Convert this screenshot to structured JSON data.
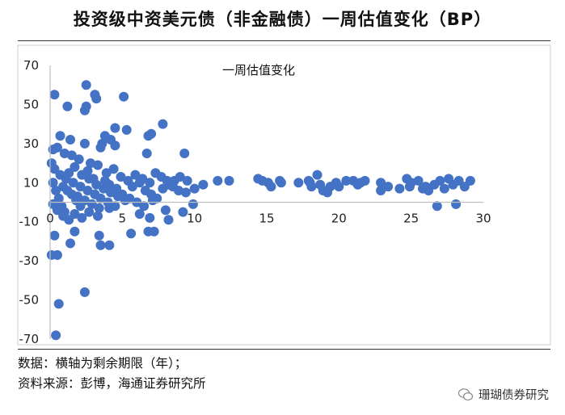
{
  "header": {
    "title": "投资级中资美元债（非金融债）一周估值变化（BP）"
  },
  "footer": {
    "data_note": "数据：横轴为剩余期限（年）；",
    "source_note": "资料来源：彭博，海通证券研究所",
    "brand": "珊瑚债券研究"
  },
  "chart_data": {
    "type": "scatter",
    "title": "一周估值变化",
    "xlabel": "",
    "ylabel": "",
    "xlim": [
      0,
      30
    ],
    "ylim": [
      -70,
      70
    ],
    "xticks": [
      "0",
      "5",
      "10",
      "15",
      "20",
      "25",
      "30"
    ],
    "yticks": [
      "70",
      "50",
      "30",
      "10",
      "-10",
      "-30",
      "-50",
      "-70"
    ],
    "grid": false,
    "legend": "none",
    "color": "#4472C4",
    "series": [
      {
        "points": [
          [
            0.3,
            55
          ],
          [
            2.5,
            60
          ],
          [
            3.1,
            55
          ],
          [
            3.2,
            53
          ],
          [
            5.1,
            54
          ],
          [
            2.5,
            49
          ],
          [
            1.2,
            49
          ],
          [
            2.4,
            47
          ],
          [
            0.7,
            34
          ],
          [
            1.4,
            32
          ],
          [
            2.4,
            30
          ],
          [
            3.6,
            30
          ],
          [
            4.5,
            38
          ],
          [
            5.3,
            37
          ],
          [
            7.8,
            40
          ],
          [
            7.0,
            35
          ],
          [
            6.8,
            34
          ],
          [
            3.8,
            34
          ],
          [
            4.2,
            32
          ],
          [
            3.5,
            28
          ],
          [
            4.5,
            29
          ],
          [
            6.7,
            25
          ],
          [
            9.3,
            25
          ],
          [
            0.2,
            27
          ],
          [
            0.5,
            28
          ],
          [
            1.0,
            25
          ],
          [
            1.5,
            24
          ],
          [
            2.0,
            22
          ],
          [
            2.8,
            20
          ],
          [
            0.1,
            20
          ],
          [
            0.3,
            17
          ],
          [
            0.7,
            14
          ],
          [
            1.1,
            12
          ],
          [
            1.6,
            10
          ],
          [
            2.1,
            8
          ],
          [
            2.6,
            6
          ],
          [
            3.1,
            4
          ],
          [
            3.5,
            2
          ],
          [
            4.0,
            0
          ],
          [
            4.5,
            -2
          ],
          [
            0.2,
            10
          ],
          [
            0.4,
            6
          ],
          [
            0.6,
            2
          ],
          [
            0.8,
            -2
          ],
          [
            1.0,
            -5
          ],
          [
            1.3,
            15
          ],
          [
            1.7,
            18
          ],
          [
            2.2,
            14
          ],
          [
            2.7,
            12
          ],
          [
            3.2,
            9
          ],
          [
            3.7,
            7
          ],
          [
            4.2,
            5
          ],
          [
            4.7,
            3
          ],
          [
            5.2,
            1
          ],
          [
            5.7,
            8
          ],
          [
            6.2,
            10
          ],
          [
            6.6,
            6
          ],
          [
            7.0,
            4
          ],
          [
            7.4,
            2
          ],
          [
            7.8,
            7
          ],
          [
            8.2,
            9
          ],
          [
            8.6,
            11
          ],
          [
            9.0,
            13
          ],
          [
            9.4,
            5
          ],
          [
            1.9,
            3
          ],
          [
            2.4,
            1
          ],
          [
            2.9,
            -1
          ],
          [
            3.4,
            -3
          ],
          [
            3.9,
            15
          ],
          [
            4.4,
            17
          ],
          [
            4.9,
            13
          ],
          [
            5.4,
            11
          ],
          [
            5.9,
            14
          ],
          [
            6.4,
            12
          ],
          [
            6.9,
            10
          ],
          [
            7.3,
            15
          ],
          [
            7.7,
            13
          ],
          [
            8.1,
            11
          ],
          [
            8.5,
            8
          ],
          [
            8.9,
            6
          ],
          [
            0.9,
            8
          ],
          [
            1.2,
            6
          ],
          [
            1.5,
            4
          ],
          [
            1.8,
            1
          ],
          [
            2.1,
            -2
          ],
          [
            2.6,
            16
          ],
          [
            3.0,
            12
          ],
          [
            3.3,
            19
          ],
          [
            3.8,
            11
          ],
          [
            4.1,
            9
          ],
          [
            4.6,
            7
          ],
          [
            5.0,
            4
          ],
          [
            5.5,
            2
          ],
          [
            6.0,
            0
          ],
          [
            6.5,
            -2
          ],
          [
            7.1,
            1
          ],
          [
            0.2,
            -1
          ],
          [
            0.5,
            -4
          ],
          [
            0.9,
            -7
          ],
          [
            1.3,
            -9
          ],
          [
            1.7,
            -6
          ],
          [
            2.2,
            -8
          ],
          [
            2.7,
            -5
          ],
          [
            3.3,
            -7
          ],
          [
            4.1,
            -3
          ],
          [
            6.2,
            -6
          ],
          [
            6.9,
            -8
          ],
          [
            8.0,
            -4
          ],
          [
            9.9,
            -1
          ],
          [
            0.3,
            -17
          ],
          [
            1.7,
            -15
          ],
          [
            1.4,
            -21
          ],
          [
            3.4,
            -17
          ],
          [
            3.5,
            -22
          ],
          [
            4.1,
            -22
          ],
          [
            5.6,
            -16
          ],
          [
            6.8,
            -15
          ],
          [
            7.2,
            -15
          ],
          [
            8.2,
            -9
          ],
          [
            9.2,
            -5
          ],
          [
            0.1,
            -27
          ],
          [
            0.5,
            -27
          ],
          [
            0.6,
            -52
          ],
          [
            2.4,
            -46
          ],
          [
            0.4,
            -68
          ],
          [
            9.5,
            11
          ],
          [
            10.0,
            7
          ],
          [
            10.6,
            9
          ],
          [
            11.6,
            11
          ],
          [
            12.4,
            11
          ],
          [
            14.4,
            12
          ],
          [
            14.7,
            11
          ],
          [
            15.1,
            10
          ],
          [
            15.3,
            8
          ],
          [
            16.0,
            10
          ],
          [
            17.2,
            10
          ],
          [
            17.9,
            11
          ],
          [
            18.1,
            8
          ],
          [
            18.5,
            14
          ],
          [
            18.7,
            9
          ],
          [
            18.9,
            6
          ],
          [
            19.4,
            8
          ],
          [
            19.8,
            10
          ],
          [
            20.5,
            11
          ],
          [
            21.0,
            11
          ],
          [
            21.5,
            10
          ],
          [
            21.8,
            11
          ],
          [
            22.9,
            10
          ],
          [
            23.4,
            8
          ],
          [
            24.7,
            12
          ],
          [
            25.0,
            10
          ],
          [
            25.5,
            11
          ],
          [
            26.0,
            8
          ],
          [
            26.6,
            9
          ],
          [
            27.0,
            11
          ],
          [
            27.3,
            7
          ],
          [
            27.9,
            9
          ],
          [
            28.3,
            11
          ],
          [
            28.7,
            8
          ],
          [
            29.1,
            11
          ],
          [
            26.8,
            -2
          ],
          [
            28.1,
            -1
          ],
          [
            20.0,
            8
          ],
          [
            22.9,
            6
          ],
          [
            24.2,
            7
          ],
          [
            25.8,
            7
          ],
          [
            26.2,
            6
          ],
          [
            27.6,
            12
          ],
          [
            15.9,
            11
          ],
          [
            18.0,
            10
          ],
          [
            21.3,
            9
          ],
          [
            24.9,
            8
          ],
          [
            19.2,
            5
          ]
        ]
      }
    ]
  }
}
